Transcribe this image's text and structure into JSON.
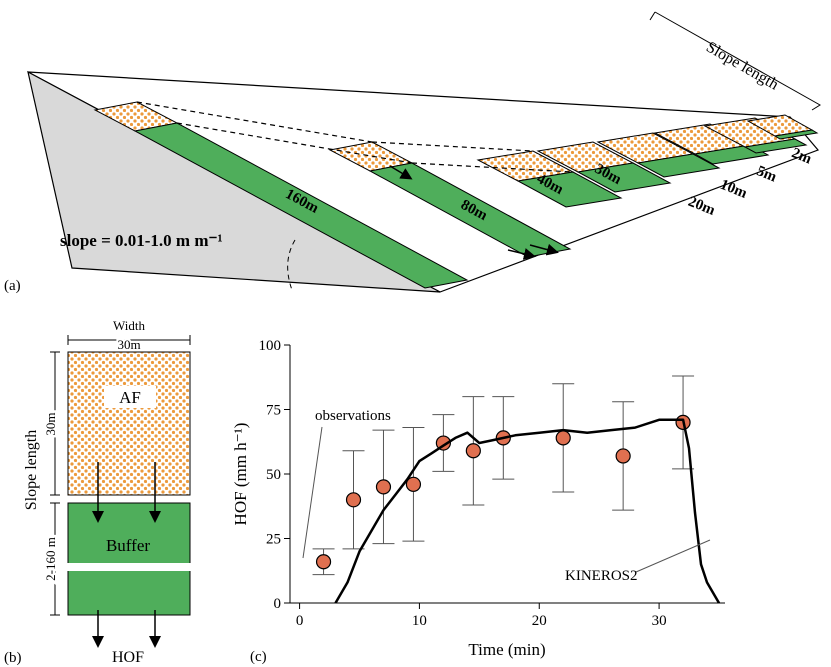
{
  "panel_a": {
    "label": "(a)",
    "slope_length": "Slope length",
    "slope": "slope = 0.01-1.0 m m⁻¹",
    "strips": [
      "160m",
      "80m",
      "40m",
      "30m",
      "20m",
      "10m",
      "5m",
      "2m"
    ]
  },
  "panel_b": {
    "label": "(b)",
    "width": "Width",
    "width_value": "30m",
    "af": "AF",
    "slope_length": "Slope length",
    "af_length": "30m",
    "buffer": "Buffer",
    "buffer_length": "2-160 m",
    "outflow": "HOF"
  },
  "chart_data": {
    "type": "line",
    "panel_label": "(c)",
    "xlabel": "Time (min)",
    "ylabel": "HOF (mm h⁻¹)",
    "xlim": [
      -0.8,
      35.5
    ],
    "ylim": [
      0,
      100
    ],
    "xticks": [
      0,
      10,
      20,
      30
    ],
    "yticks": [
      0,
      25,
      50,
      75,
      100
    ],
    "series": [
      {
        "name": "observations",
        "type": "scatter",
        "color": "#e07050",
        "x": [
          2,
          4.5,
          7,
          9.5,
          12,
          14.5,
          17,
          22,
          27,
          32
        ],
        "values": [
          16,
          40,
          45,
          46,
          62,
          59,
          64,
          64,
          57,
          70
        ],
        "errors": [
          5,
          19,
          22,
          22,
          11,
          21,
          16,
          21,
          21,
          18
        ]
      },
      {
        "name": "KINEROS2",
        "type": "line",
        "color": "#000000",
        "x": [
          3,
          4,
          5,
          6,
          7,
          8,
          9,
          10,
          11,
          12,
          13,
          14,
          15,
          16,
          18,
          20,
          22,
          24,
          26,
          28,
          30,
          32,
          32.5,
          33,
          33.5,
          34,
          35
        ],
        "values": [
          0,
          8,
          20,
          28,
          36,
          42,
          48,
          55,
          58,
          61,
          64,
          66,
          62,
          63,
          65,
          66,
          67,
          66,
          67,
          68,
          71,
          71,
          60,
          35,
          15,
          8,
          0
        ]
      }
    ]
  }
}
